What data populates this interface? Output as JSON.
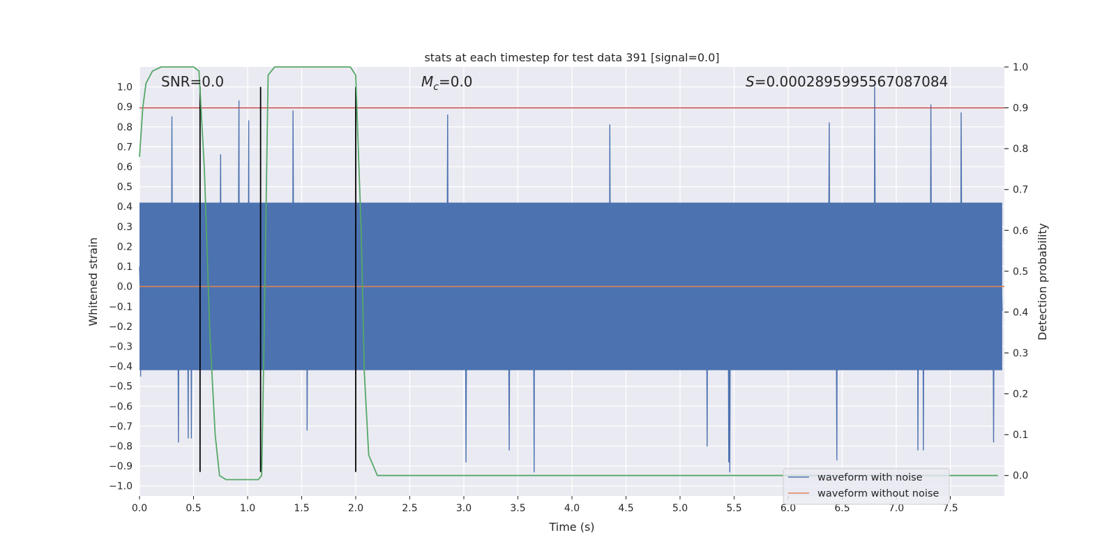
{
  "chart_data": {
    "type": "line",
    "title": "stats at each timestep for test data 391 [signal=0.0]",
    "xlabel": "Time (s)",
    "ylabel": "Whitened strain",
    "ylabel_right": "Detection probability",
    "xlim": [
      0.0,
      8.0
    ],
    "ylim": [
      -1.05,
      1.1
    ],
    "ylim_right": [
      -0.05,
      1.0
    ],
    "x_ticks": [
      0.0,
      0.5,
      1.0,
      1.5,
      2.0,
      2.5,
      3.0,
      3.5,
      4.0,
      4.5,
      5.0,
      5.5,
      6.0,
      6.5,
      7.0,
      7.5
    ],
    "x_tick_labels": [
      "0.0",
      "0.5",
      "1.0",
      "1.5",
      "2.0",
      "2.5",
      "3.0",
      "3.5",
      "4.0",
      "4.5",
      "5.0",
      "5.5",
      "6.0",
      "6.5",
      "7.0",
      "7.5"
    ],
    "y_ticks": [
      1.0,
      0.9,
      0.8,
      0.7,
      0.6,
      0.5,
      0.4,
      0.3,
      0.2,
      0.1,
      0.0,
      -0.1,
      -0.2,
      -0.3,
      -0.4,
      -0.5,
      -0.6,
      -0.7,
      -0.8,
      -0.9,
      -1.0
    ],
    "y_tick_labels": [
      "1.0",
      "0.9",
      "0.8",
      "0.7",
      "0.6",
      "0.5",
      "0.4",
      "0.3",
      "0.2",
      "0.1",
      "0.0",
      "−0.1",
      "−0.2",
      "−0.3",
      "−0.4",
      "−0.5",
      "−0.6",
      "−0.7",
      "−0.8",
      "−0.9",
      "−1.0"
    ],
    "y_ticks_right": [
      1.0,
      0.9,
      0.8,
      0.7,
      0.6,
      0.5,
      0.4,
      0.3,
      0.2,
      0.1,
      0.0
    ],
    "y_tick_labels_right": [
      "1.0",
      "0.9",
      "0.8",
      "0.7",
      "0.6",
      "0.5",
      "0.4",
      "0.3",
      "0.2",
      "0.1",
      "0.0"
    ],
    "grid": true,
    "legend_position": "bottom-right",
    "annotations": {
      "snr": "SNR=0.0",
      "mc_symbol": "M",
      "mc_sub": "c",
      "mc_value": "=0.0",
      "s_symbol": "S",
      "s_value": "=0.0002895995567087084"
    },
    "series": [
      {
        "name": "waveform with noise",
        "color": "#4c72b0",
        "noise_seed": 391,
        "sample_count": 1600,
        "peaks": [
          {
            "x": 0.01,
            "y": -0.45
          },
          {
            "x": 0.3,
            "y": 0.85
          },
          {
            "x": 0.36,
            "y": -0.78
          },
          {
            "x": 0.45,
            "y": -0.76
          },
          {
            "x": 0.48,
            "y": -0.76
          },
          {
            "x": 0.75,
            "y": 0.66
          },
          {
            "x": 0.92,
            "y": 0.93
          },
          {
            "x": 1.01,
            "y": 0.83
          },
          {
            "x": 1.42,
            "y": 0.88
          },
          {
            "x": 1.55,
            "y": -0.72
          },
          {
            "x": 2.85,
            "y": 0.86
          },
          {
            "x": 3.02,
            "y": -0.88
          },
          {
            "x": 3.42,
            "y": -0.82
          },
          {
            "x": 3.65,
            "y": -0.93
          },
          {
            "x": 4.35,
            "y": 0.81
          },
          {
            "x": 5.25,
            "y": -0.8
          },
          {
            "x": 5.45,
            "y": -0.88
          },
          {
            "x": 5.46,
            "y": -0.93
          },
          {
            "x": 6.38,
            "y": 0.82
          },
          {
            "x": 6.45,
            "y": -0.87
          },
          {
            "x": 6.8,
            "y": 1.0
          },
          {
            "x": 7.2,
            "y": -0.82
          },
          {
            "x": 7.25,
            "y": -0.82
          },
          {
            "x": 7.32,
            "y": 0.91
          },
          {
            "x": 7.6,
            "y": 0.87
          },
          {
            "x": 7.9,
            "y": -0.78
          }
        ]
      },
      {
        "name": "waveform without noise",
        "color": "#dd8452",
        "y_constant": 0.0
      },
      {
        "name": "detection probability",
        "color": "#55a868",
        "axis": "right",
        "x": [
          0.0,
          0.03,
          0.06,
          0.12,
          0.2,
          0.3,
          0.4,
          0.5,
          0.55,
          0.6,
          0.65,
          0.7,
          0.74,
          0.8,
          0.9,
          1.0,
          1.05,
          1.1,
          1.13,
          1.15,
          1.19,
          1.25,
          1.3,
          1.4,
          1.5,
          1.6,
          1.7,
          1.8,
          1.9,
          1.95,
          2.0,
          2.05,
          2.08,
          2.12,
          2.2,
          2.3,
          2.5,
          3.0,
          3.5,
          4.0,
          4.4,
          4.5,
          5.0,
          5.5,
          6.0,
          6.5,
          7.0,
          7.5,
          7.94
        ],
        "y": [
          0.78,
          0.9,
          0.96,
          0.99,
          1.0,
          1.0,
          1.0,
          1.0,
          0.99,
          0.75,
          0.35,
          0.1,
          0.0,
          -0.01,
          -0.01,
          -0.01,
          -0.01,
          -0.01,
          0.0,
          0.3,
          0.98,
          1.0,
          1.0,
          1.0,
          1.0,
          1.0,
          1.0,
          1.0,
          1.0,
          1.0,
          0.98,
          0.6,
          0.25,
          0.05,
          0.0,
          0.0,
          0.0,
          0.0,
          0.0,
          0.0,
          0.0,
          0.0,
          0.0,
          0.0,
          0.0,
          0.0,
          0.0,
          0.0,
          0.0
        ]
      }
    ],
    "reference_lines": {
      "horizontal_red": {
        "y_right": 0.9,
        "color": "#c44e52"
      },
      "vertical_black": [
        0.56,
        1.12,
        2.0
      ],
      "vertical_black_ylim": [
        -0.93,
        1.0
      ]
    }
  }
}
